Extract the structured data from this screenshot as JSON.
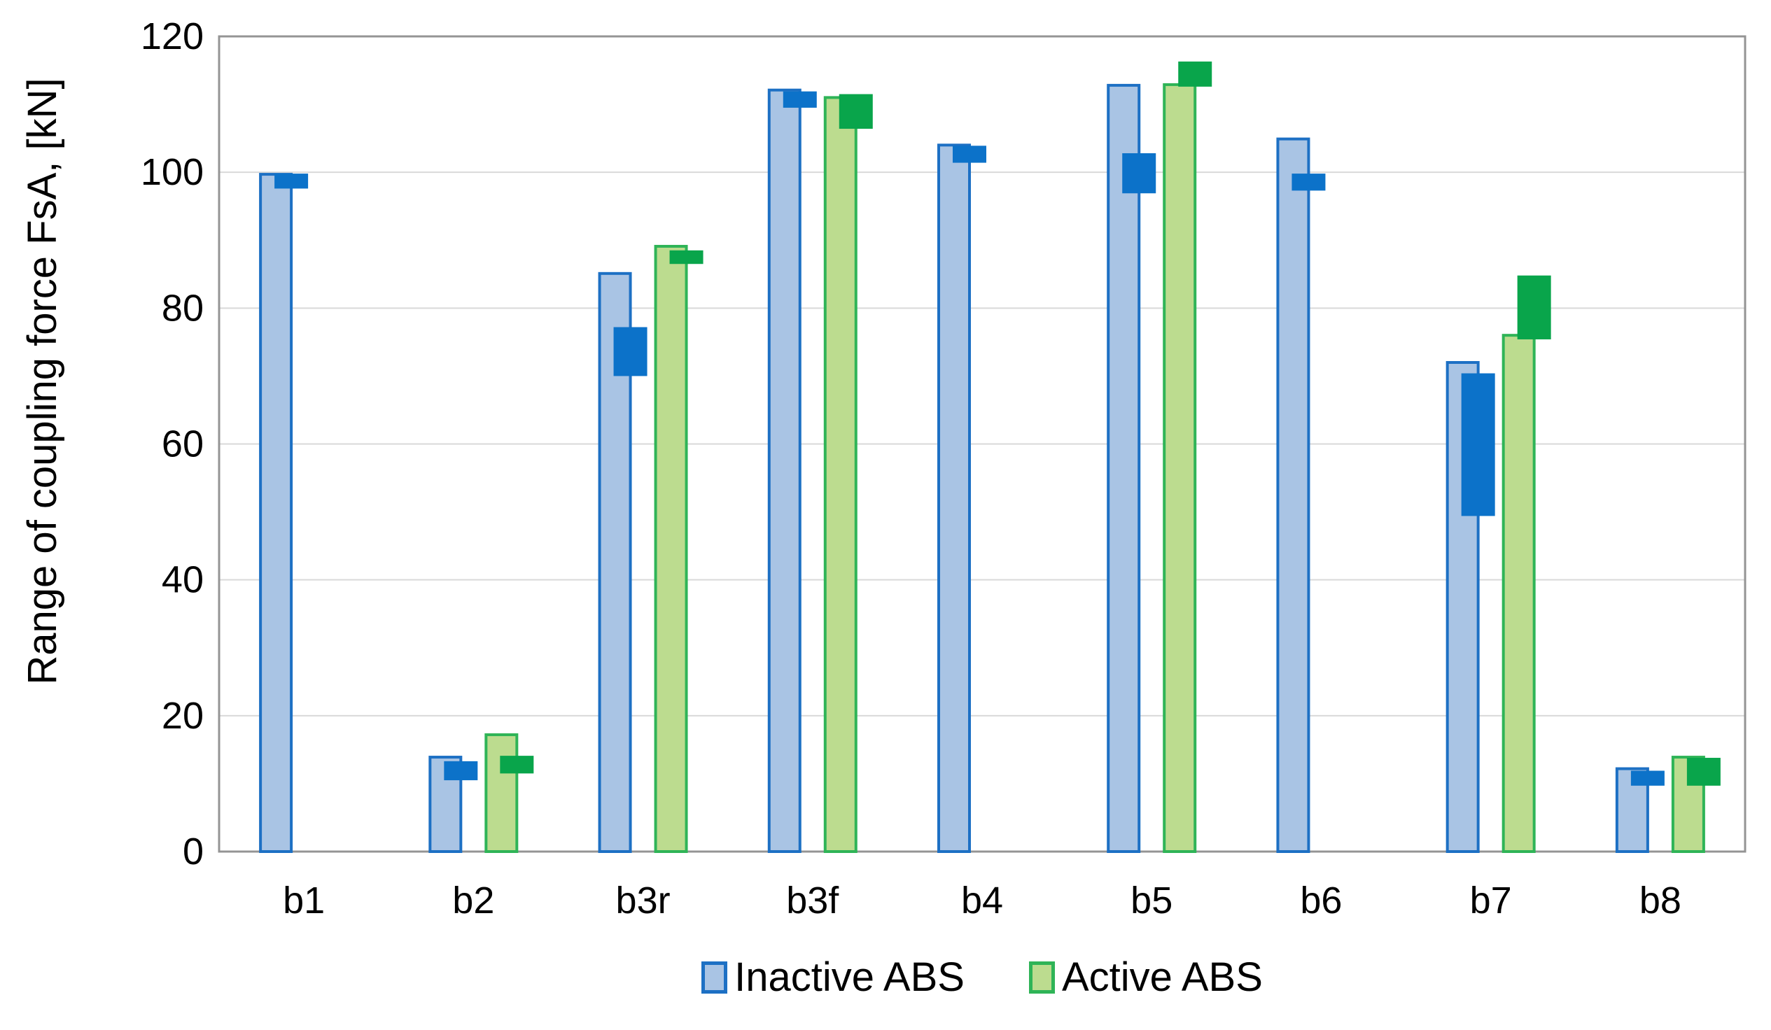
{
  "chart_data": {
    "type": "bar",
    "title": "",
    "xlabel": "",
    "ylabel": "Range of coupling force FsA, [kN]",
    "categories": [
      "b1",
      "b2",
      "b3r",
      "b3f",
      "b4",
      "b5",
      "b6",
      "b7",
      "b8"
    ],
    "ylim": [
      0,
      120
    ],
    "yticks": [
      0,
      20,
      40,
      60,
      80,
      100,
      120
    ],
    "grid": true,
    "legend_position": "bottom-center",
    "marker_shape": "solid dark rectangle overlapping the bar and offset to the right; depicts a sub-range [low, high] in kN",
    "colors": {
      "gridline": "#D9D9D9",
      "frame": "#949494",
      "text": "#000000",
      "background": "#FFFFFF"
    },
    "series": [
      {
        "name": "Inactive ABS",
        "fill": "#A9C4E4",
        "edge": "#1D70C4",
        "marker_color": "#0C72C9",
        "values": [
          99.7,
          13.9,
          85.1,
          112.1,
          104.0,
          112.8,
          104.9,
          72.0,
          12.2
        ],
        "marker_ranges": [
          [
            97.6,
            99.8
          ],
          [
            10.5,
            13.3
          ],
          [
            70.0,
            77.2
          ],
          [
            109.5,
            111.9
          ],
          [
            101.4,
            103.9
          ],
          [
            96.9,
            102.8
          ],
          [
            97.3,
            99.8
          ],
          [
            49.4,
            70.4
          ],
          [
            9.7,
            11.9
          ]
        ]
      },
      {
        "name": "Active ABS",
        "fill": "#BCDC8F",
        "edge": "#2FB457",
        "marker_color": "#09A54B",
        "values": [
          null,
          17.2,
          89.1,
          111.0,
          null,
          112.9,
          null,
          76.0,
          13.9
        ],
        "marker_ranges": [
          null,
          [
            11.5,
            14.1
          ],
          [
            86.5,
            88.5
          ],
          [
            106.4,
            111.5
          ],
          null,
          [
            112.6,
            116.3
          ],
          null,
          [
            75.4,
            84.8
          ],
          [
            9.7,
            13.8
          ]
        ]
      }
    ]
  }
}
